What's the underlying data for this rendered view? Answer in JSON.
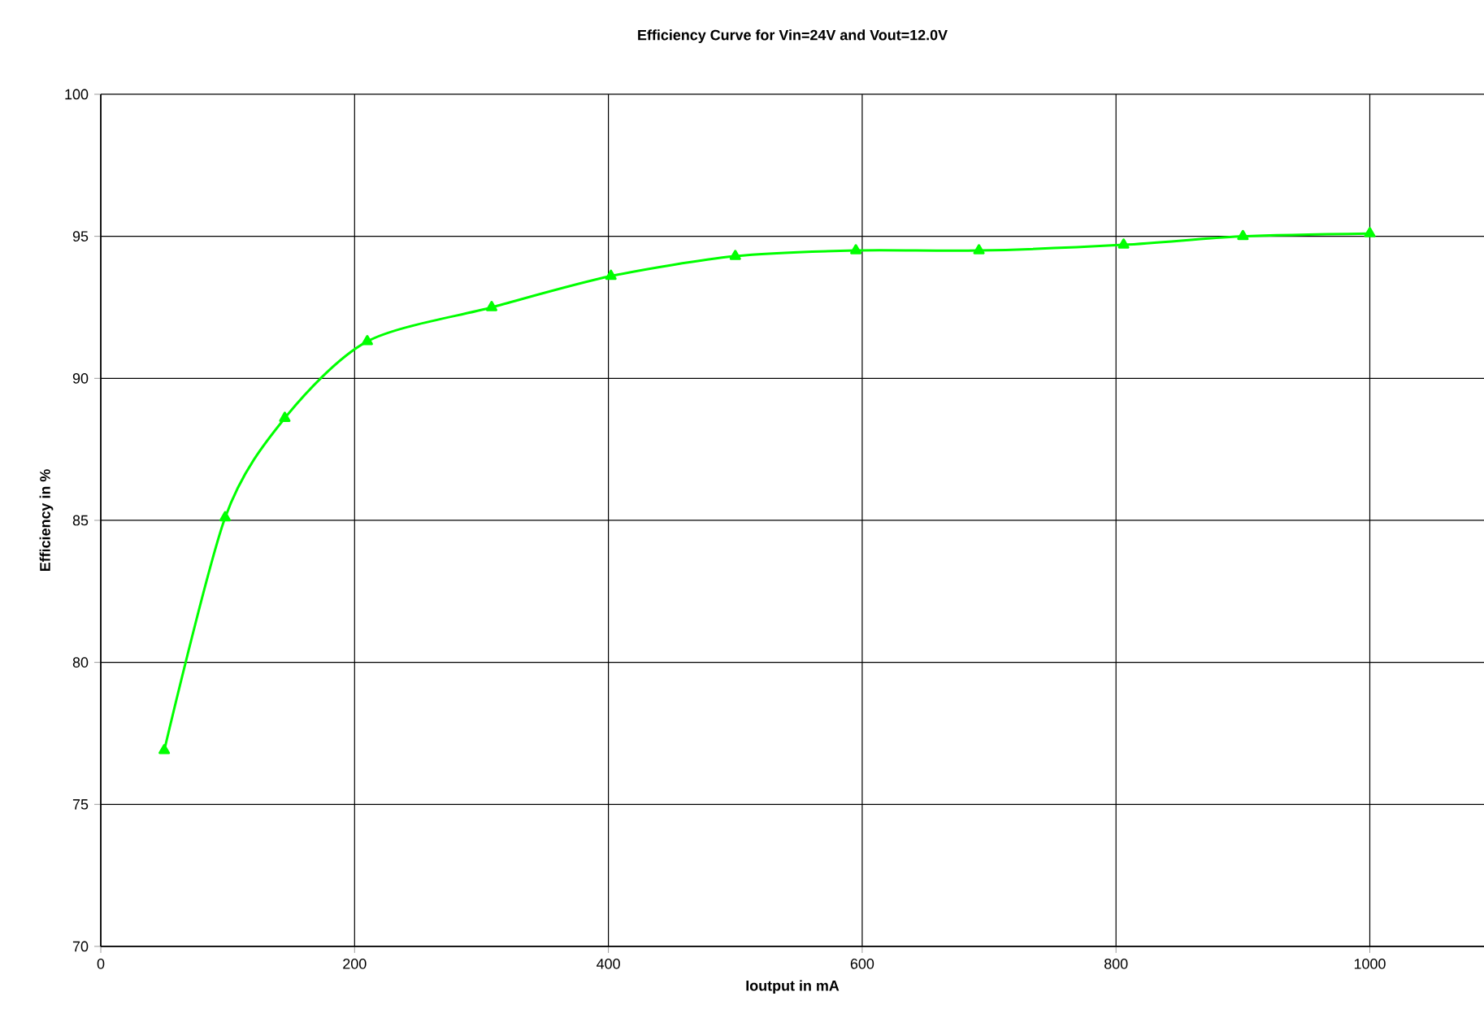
{
  "chart_data": {
    "type": "line",
    "title": "Efficiency Curve for Vin=24V and Vout=12.0V",
    "xlabel": "Ioutput in mA",
    "ylabel": "Efficiency in %",
    "x": [
      50,
      98,
      145,
      210,
      308,
      402,
      500,
      595,
      692,
      806,
      900,
      1000
    ],
    "series": [
      {
        "color": "#00ff00",
        "values": [
          76.9,
          85.1,
          88.6,
          91.3,
          92.5,
          93.6,
          94.3,
          94.5,
          94.5,
          94.7,
          95.0,
          95.1
        ]
      }
    ],
    "xlim": [
      0,
      1090
    ],
    "xticks": [
      0,
      200,
      400,
      600,
      800,
      1000
    ],
    "ylim": [
      70,
      100
    ],
    "yticks": [
      70,
      75,
      80,
      85,
      90,
      95,
      100
    ],
    "grid": true,
    "marker": "triangle",
    "line_style": "solid"
  }
}
